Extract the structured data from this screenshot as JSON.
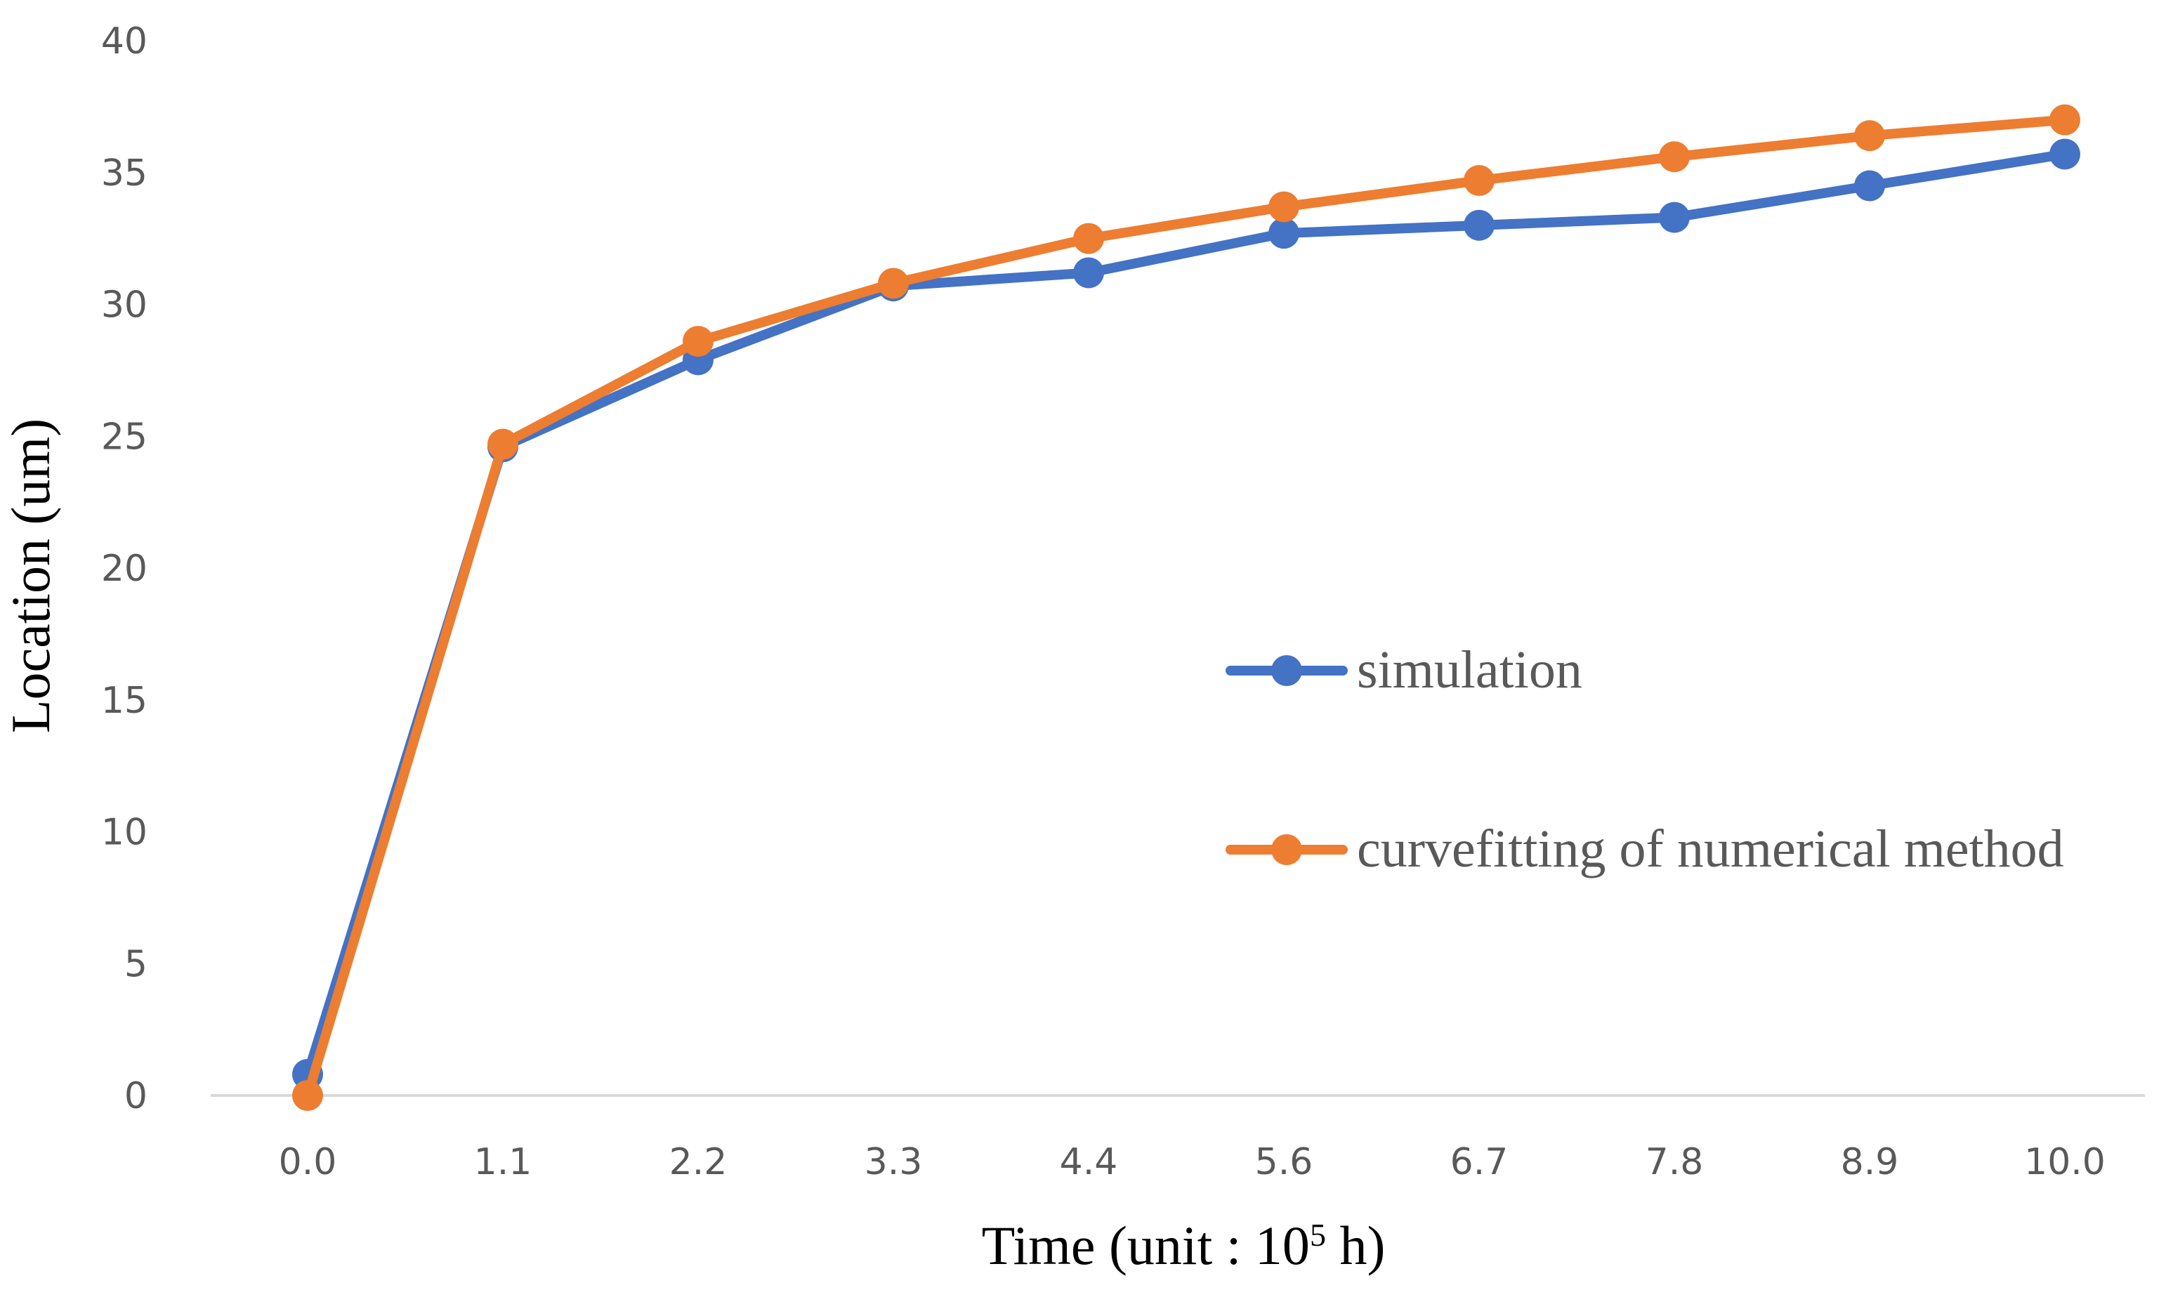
{
  "chart_data": {
    "type": "line",
    "title": "",
    "xlabel": "Time (unit : 10",
    "xlabel_superscript": "5",
    "xlabel_suffix": " h)",
    "ylabel": "Location (um)",
    "categories": [
      "0.0",
      "1.1",
      "2.2",
      "3.3",
      "4.4",
      "5.6",
      "6.7",
      "7.8",
      "8.9",
      "10.0"
    ],
    "yticks": [
      "0",
      "5",
      "10",
      "15",
      "20",
      "25",
      "30",
      "35",
      "40"
    ],
    "ylim": [
      0,
      40
    ],
    "grid": false,
    "legend_position": "right-center",
    "series": [
      {
        "name": "simulation",
        "color": "#4472C4",
        "values": [
          0.8,
          24.6,
          27.9,
          30.7,
          31.2,
          32.7,
          33.0,
          33.3,
          34.5,
          35.7
        ]
      },
      {
        "name": "curvefitting of numerical method",
        "color": "#ED7D31",
        "values": [
          0.0,
          24.7,
          28.6,
          30.8,
          32.5,
          33.7,
          34.7,
          35.6,
          36.4,
          37.0
        ]
      }
    ]
  }
}
